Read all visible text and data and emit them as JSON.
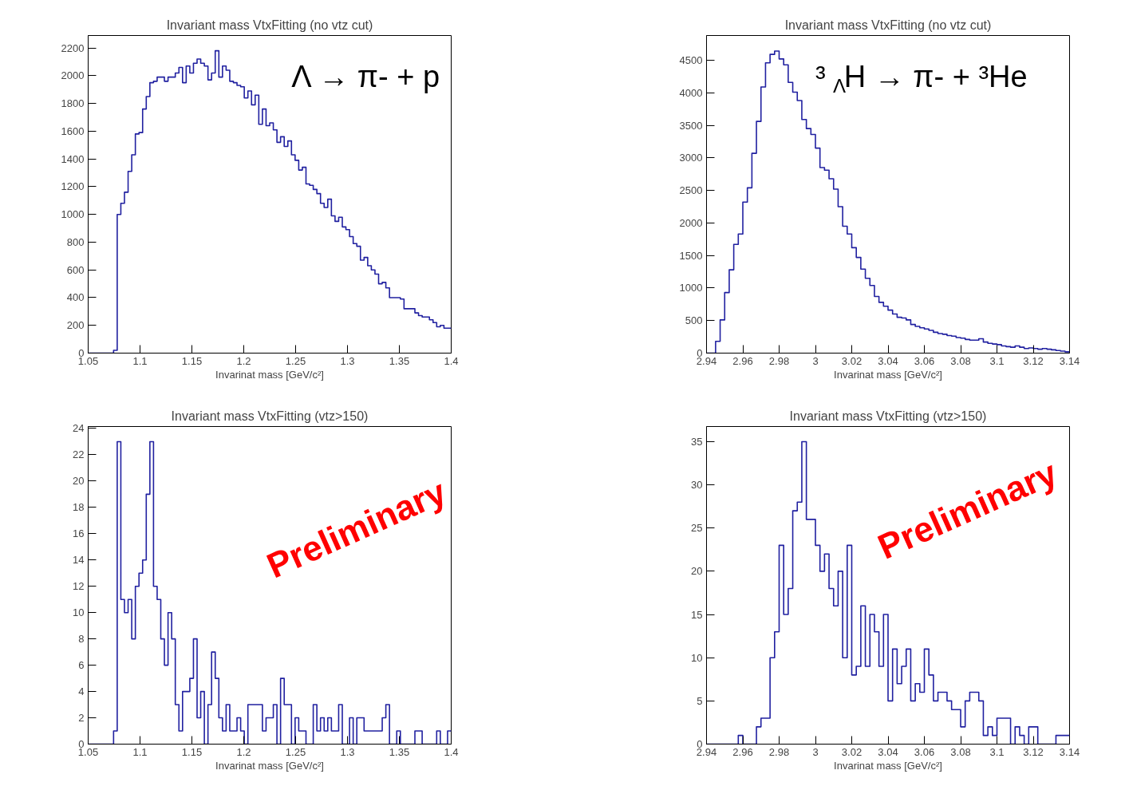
{
  "chart_data": [
    {
      "type": "histogram",
      "title": "Invariant mass VtxFitting (no vtz cut)",
      "xlabel": "Invarinat mass [GeV/c²]",
      "color": "#2020a0",
      "bins": [
        1.05,
        1.0535,
        1.057,
        1.0605,
        1.064,
        1.0675,
        1.071,
        1.0745,
        1.078,
        1.0815,
        1.085,
        1.0885,
        1.092,
        1.0955,
        1.099,
        1.1025,
        1.106,
        1.1095,
        1.113,
        1.1165,
        1.12,
        1.1235,
        1.127,
        1.1305,
        1.134,
        1.1375,
        1.141,
        1.1445,
        1.148,
        1.1515,
        1.155,
        1.1585,
        1.162,
        1.1655,
        1.169,
        1.1725,
        1.176,
        1.1795,
        1.183,
        1.1865,
        1.19,
        1.1935,
        1.197,
        1.2005,
        1.204,
        1.2075,
        1.211,
        1.2145,
        1.218,
        1.2215,
        1.225,
        1.2285,
        1.232,
        1.2355,
        1.239,
        1.2425,
        1.246,
        1.2495,
        1.253,
        1.2565,
        1.26,
        1.2635,
        1.267,
        1.2705,
        1.274,
        1.2775,
        1.281,
        1.2845,
        1.288,
        1.2915,
        1.295,
        1.2985,
        1.302,
        1.3055,
        1.309,
        1.3125,
        1.316,
        1.3195,
        1.323,
        1.3265,
        1.33,
        1.3335,
        1.337,
        1.3405,
        1.344,
        1.3475,
        1.351,
        1.3545,
        1.358,
        1.3615,
        1.365,
        1.3685,
        1.372,
        1.3755,
        1.379,
        1.3825,
        1.386,
        1.3895,
        1.393,
        1.3965,
        1.4
      ],
      "values": [
        0,
        0,
        0,
        0,
        0,
        0,
        0,
        20,
        1000,
        1080,
        1160,
        1310,
        1430,
        1580,
        1590,
        1760,
        1850,
        1950,
        1960,
        1990,
        1990,
        1960,
        1990,
        1990,
        2020,
        2060,
        1950,
        2070,
        2020,
        2090,
        2120,
        2090,
        2070,
        1970,
        2020,
        2180,
        1990,
        2070,
        2040,
        1960,
        1950,
        1930,
        1920,
        1840,
        1890,
        1790,
        1860,
        1650,
        1760,
        1640,
        1660,
        1610,
        1520,
        1560,
        1490,
        1530,
        1430,
        1390,
        1320,
        1340,
        1220,
        1210,
        1180,
        1150,
        1080,
        1050,
        1110,
        990,
        950,
        980,
        910,
        890,
        840,
        790,
        770,
        670,
        690,
        630,
        600,
        570,
        500,
        510,
        470,
        400,
        400,
        400,
        390,
        320,
        320,
        320,
        290,
        270,
        260,
        260,
        240,
        220,
        190,
        200,
        180,
        180
      ],
      "xlim": [
        1.05,
        1.4
      ],
      "ylim": [
        0,
        2290
      ],
      "xticks": [
        1.05,
        1.1,
        1.15,
        1.2,
        1.25,
        1.3,
        1.35,
        1.4
      ],
      "yticks": [
        0,
        200,
        400,
        600,
        800,
        1000,
        1200,
        1400,
        1600,
        1800,
        2000,
        2200
      ],
      "annotations": [
        "Λ → π- + p"
      ]
    },
    {
      "type": "histogram",
      "title": "Invariant mass VtxFitting (no vtz cut)",
      "xlabel": "Invarinat mass [GeV/c²]",
      "color": "#2020a0",
      "bins": [
        2.94,
        2.9425,
        2.945,
        2.9475,
        2.95,
        2.9525,
        2.955,
        2.9575,
        2.96,
        2.9625,
        2.965,
        2.9675,
        2.97,
        2.9725,
        2.975,
        2.9775,
        2.98,
        2.9825,
        2.985,
        2.9875,
        2.99,
        2.9925,
        2.995,
        2.9975,
        3,
        3.0025,
        3.005,
        3.0075,
        3.01,
        3.0125,
        3.015,
        3.0175,
        3.02,
        3.0225,
        3.025,
        3.0275,
        3.03,
        3.0325,
        3.035,
        3.0375,
        3.04,
        3.0425,
        3.045,
        3.0475,
        3.05,
        3.0525,
        3.055,
        3.0575,
        3.06,
        3.0625,
        3.065,
        3.0675,
        3.07,
        3.0725,
        3.075,
        3.0775,
        3.08,
        3.0825,
        3.085,
        3.0875,
        3.09,
        3.0925,
        3.095,
        3.0975,
        3.1,
        3.1025,
        3.105,
        3.1075,
        3.11,
        3.1125,
        3.115,
        3.1175,
        3.12,
        3.1225,
        3.125,
        3.1275,
        3.13,
        3.1325,
        3.135,
        3.1375,
        3.14
      ],
      "values": [
        0,
        0,
        180,
        510,
        930,
        1280,
        1670,
        1830,
        2320,
        2540,
        3070,
        3560,
        4090,
        4460,
        4590,
        4640,
        4520,
        4430,
        4160,
        4010,
        3880,
        3590,
        3450,
        3360,
        3150,
        2850,
        2810,
        2680,
        2520,
        2250,
        1950,
        1830,
        1620,
        1470,
        1290,
        1150,
        1040,
        870,
        780,
        720,
        660,
        600,
        550,
        540,
        510,
        440,
        410,
        390,
        370,
        350,
        320,
        300,
        290,
        270,
        260,
        240,
        230,
        210,
        200,
        200,
        220,
        170,
        150,
        140,
        130,
        110,
        100,
        90,
        110,
        90,
        70,
        80,
        70,
        60,
        70,
        60,
        50,
        40,
        30,
        20
      ],
      "xlim": [
        2.94,
        3.14
      ],
      "ylim": [
        0,
        4880
      ],
      "xticks": [
        2.94,
        2.96,
        2.98,
        3,
        3.02,
        3.04,
        3.06,
        3.08,
        3.1,
        3.12,
        3.14
      ],
      "yticks": [
        0,
        500,
        1000,
        1500,
        2000,
        2500,
        3000,
        3500,
        4000,
        4500
      ],
      "annotations": [
        "³$_{Λ}$H → π- + ³He"
      ]
    },
    {
      "type": "histogram",
      "title": "Invariant mass VtxFitting (vtz>150)",
      "xlabel": "Invarinat mass [GeV/c²]",
      "color": "#2020a0",
      "bins": [
        1.05,
        1.0535,
        1.057,
        1.0605,
        1.064,
        1.0675,
        1.071,
        1.0745,
        1.078,
        1.0815,
        1.085,
        1.0885,
        1.092,
        1.0955,
        1.099,
        1.1025,
        1.106,
        1.1095,
        1.113,
        1.1165,
        1.12,
        1.1235,
        1.127,
        1.1305,
        1.134,
        1.1375,
        1.141,
        1.1445,
        1.148,
        1.1515,
        1.155,
        1.1585,
        1.162,
        1.1655,
        1.169,
        1.1725,
        1.176,
        1.1795,
        1.183,
        1.1865,
        1.19,
        1.1935,
        1.197,
        1.2005,
        1.204,
        1.2075,
        1.211,
        1.2145,
        1.218,
        1.2215,
        1.225,
        1.2285,
        1.232,
        1.2355,
        1.239,
        1.2425,
        1.246,
        1.2495,
        1.253,
        1.2565,
        1.26,
        1.2635,
        1.267,
        1.2705,
        1.274,
        1.2775,
        1.281,
        1.2845,
        1.288,
        1.2915,
        1.295,
        1.2985,
        1.302,
        1.3055,
        1.309,
        1.3125,
        1.316,
        1.3195,
        1.323,
        1.3265,
        1.33,
        1.3335,
        1.337,
        1.3405,
        1.344,
        1.3475,
        1.351,
        1.3545,
        1.358,
        1.3615,
        1.365,
        1.3685,
        1.372,
        1.3755,
        1.379,
        1.3825,
        1.386,
        1.3895,
        1.393,
        1.3965,
        1.4
      ],
      "values": [
        0,
        0,
        0,
        0,
        0,
        0,
        0,
        1,
        23,
        11,
        10,
        11,
        8,
        12,
        13,
        14,
        19,
        23,
        12,
        11,
        8,
        6,
        10,
        8,
        3,
        1,
        4,
        4,
        5,
        8,
        2,
        4,
        0,
        3,
        7,
        5,
        2,
        1,
        3,
        1,
        1,
        2,
        1,
        0,
        3,
        3,
        3,
        3,
        1,
        2,
        2,
        3,
        0,
        5,
        3,
        3,
        0,
        2,
        1,
        1,
        0,
        0,
        3,
        1,
        2,
        1,
        2,
        1,
        1,
        3,
        0,
        0,
        2,
        0,
        2,
        2,
        1,
        1,
        1,
        1,
        1,
        2,
        3,
        0,
        0,
        1,
        0,
        0,
        0,
        0,
        1,
        1,
        0,
        0,
        0,
        0,
        1,
        0,
        0,
        1
      ],
      "xlim": [
        1.05,
        1.4
      ],
      "ylim": [
        0,
        24.15
      ],
      "xticks": [
        1.05,
        1.1,
        1.15,
        1.2,
        1.25,
        1.3,
        1.35,
        1.4
      ],
      "yticks": [
        0,
        2,
        4,
        6,
        8,
        10,
        12,
        14,
        16,
        18,
        20,
        22,
        24
      ],
      "annotations": [
        "Preliminary"
      ]
    },
    {
      "type": "histogram",
      "title": "Invariant mass VtxFitting (vtz>150)",
      "xlabel": "Invarinat mass [GeV/c²]",
      "color": "#2020a0",
      "bins": [
        2.94,
        2.9425,
        2.945,
        2.9475,
        2.95,
        2.9525,
        2.955,
        2.9575,
        2.96,
        2.9625,
        2.965,
        2.9675,
        2.97,
        2.9725,
        2.975,
        2.9775,
        2.98,
        2.9825,
        2.985,
        2.9875,
        2.99,
        2.9925,
        2.995,
        2.9975,
        3,
        3.0025,
        3.005,
        3.0075,
        3.01,
        3.0125,
        3.015,
        3.0175,
        3.02,
        3.0225,
        3.025,
        3.0275,
        3.03,
        3.0325,
        3.035,
        3.0375,
        3.04,
        3.0425,
        3.045,
        3.0475,
        3.05,
        3.0525,
        3.055,
        3.0575,
        3.06,
        3.0625,
        3.065,
        3.0675,
        3.07,
        3.0725,
        3.075,
        3.0775,
        3.08,
        3.0825,
        3.085,
        3.0875,
        3.09,
        3.0925,
        3.095,
        3.0975,
        3.1,
        3.1025,
        3.105,
        3.1075,
        3.11,
        3.1125,
        3.115,
        3.1175,
        3.12,
        3.1225,
        3.125,
        3.1275,
        3.13,
        3.1325,
        3.135,
        3.1375,
        3.14
      ],
      "values": [
        0,
        0,
        0,
        0,
        0,
        0,
        0,
        1,
        0,
        0,
        0,
        2,
        3,
        3,
        10,
        13,
        23,
        15,
        18,
        27,
        28,
        35,
        26,
        26,
        23,
        20,
        22,
        18,
        16,
        20,
        10,
        23,
        8,
        9,
        16,
        9,
        15,
        13,
        9,
        15,
        5,
        11,
        7,
        9,
        11,
        5,
        7,
        6,
        11,
        8,
        5,
        6,
        6,
        5,
        4,
        4,
        2,
        5,
        6,
        6,
        5,
        1,
        2,
        1,
        3,
        3,
        3,
        0,
        2,
        1,
        0,
        2,
        2,
        0,
        0,
        0,
        0,
        1,
        1,
        1
      ],
      "xlim": [
        2.94,
        3.14
      ],
      "ylim": [
        0,
        36.75
      ],
      "xticks": [
        2.94,
        2.96,
        2.98,
        3,
        3.02,
        3.04,
        3.06,
        3.08,
        3.1,
        3.12,
        3.14
      ],
      "yticks": [
        0,
        5,
        10,
        15,
        20,
        25,
        30,
        35
      ],
      "annotations": [
        "Preliminary"
      ]
    }
  ]
}
